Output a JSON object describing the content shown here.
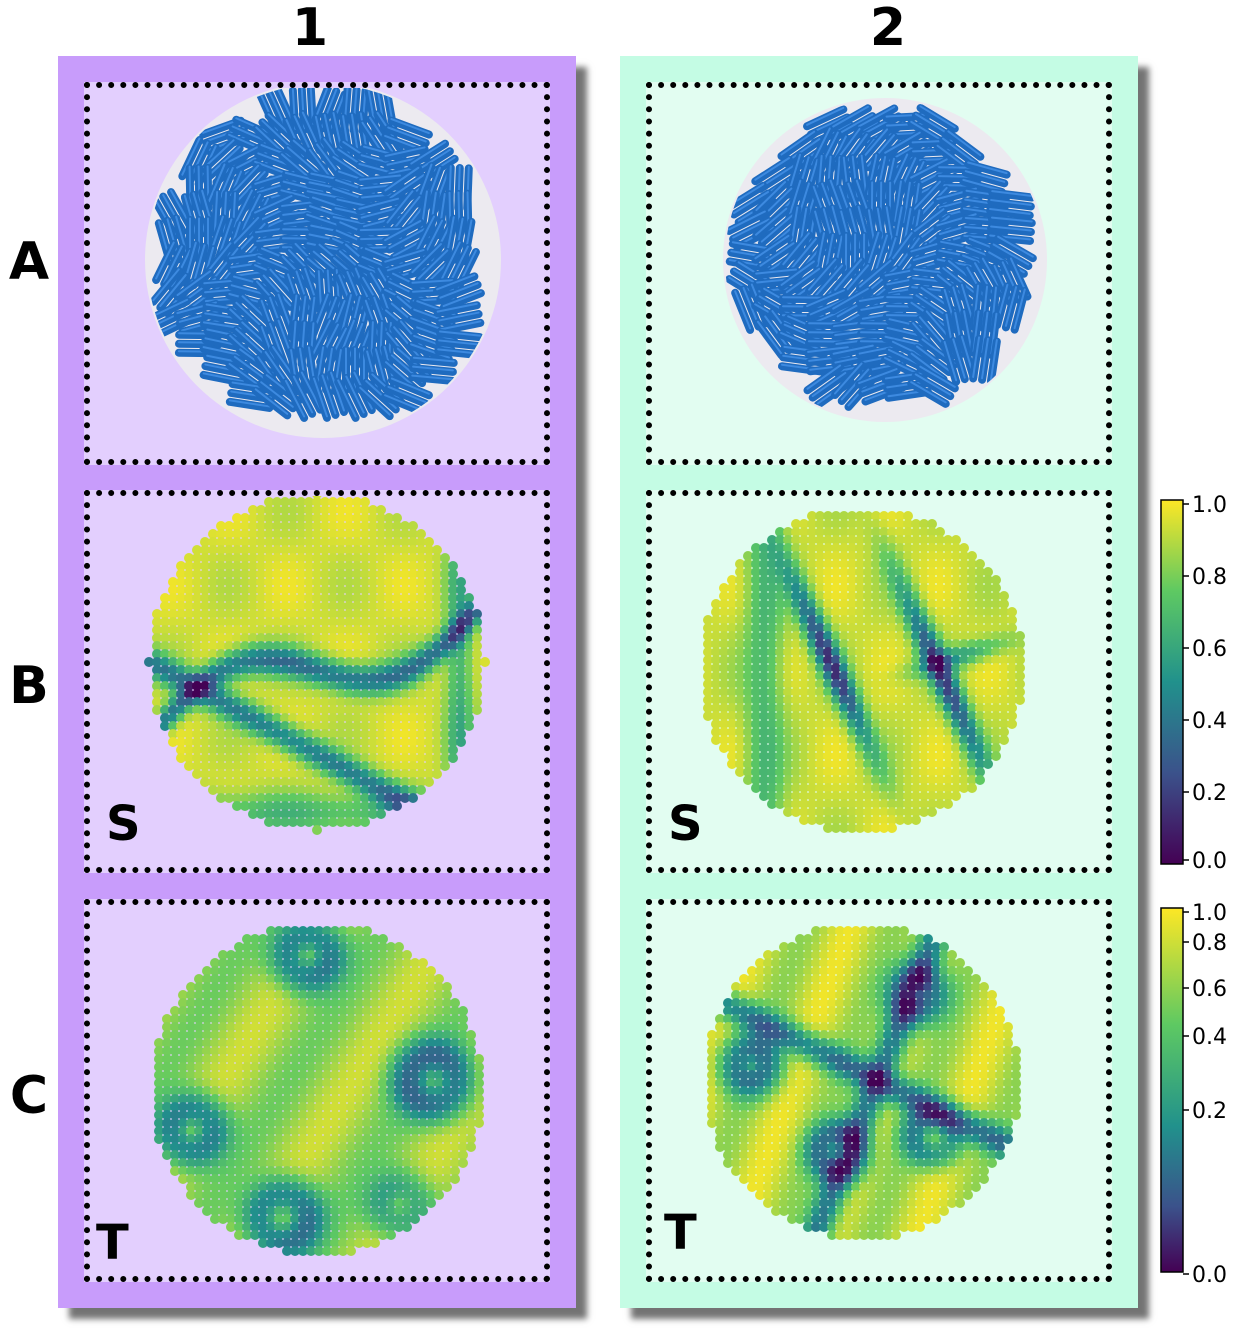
{
  "columns": [
    {
      "label": "1",
      "panel_color": "#c89cfb",
      "cell_color": "#e3cffe"
    },
    {
      "label": "2",
      "panel_color": "#c4fce4",
      "cell_color": "#e2fdf1"
    }
  ],
  "rows": [
    {
      "label": "A"
    },
    {
      "label": "B",
      "inset": "S"
    },
    {
      "label": "C",
      "inset": "T"
    }
  ],
  "rod_color": "#1f6bbf",
  "colorbars": [
    {
      "ticks": [
        "1.0",
        "0.8",
        "0.6",
        "0.4",
        "0.2",
        "0.0"
      ],
      "scale": "linear"
    },
    {
      "ticks": [
        "1.0",
        "0.8",
        "0.6",
        "0.4",
        "0.2",
        "0.0"
      ],
      "scale": "nonlinear"
    }
  ],
  "colormap": [
    "#440154",
    "#3b528b",
    "#21918c",
    "#5ec962",
    "#fde725"
  ]
}
